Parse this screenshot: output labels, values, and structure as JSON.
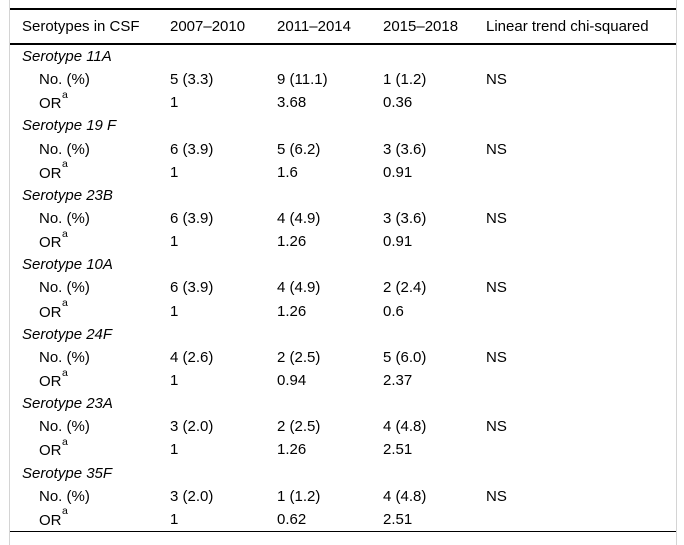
{
  "page": {
    "background": "#ffffff",
    "rule_color": "#000000",
    "frame_color": "#d4d4d4"
  },
  "table": {
    "columns": [
      {
        "label": "Serotypes in CSF"
      },
      {
        "label": "2007–2010"
      },
      {
        "label": "2011–2014"
      },
      {
        "label": "2015–2018"
      },
      {
        "label": "Linear trend chi-squared"
      }
    ],
    "row_labels": {
      "count": "No. (%)",
      "odds_ratio": "OR",
      "odds_ratio_sup": "a"
    },
    "groups": [
      {
        "serotype": "Serotype 11A",
        "counts": [
          "5 (3.3)",
          "9 (11.1)",
          "1 (1.2)"
        ],
        "trend": "NS",
        "odds_ratios": [
          "1",
          "3.68",
          "0.36"
        ]
      },
      {
        "serotype": "Serotype 19 F",
        "counts": [
          "6 (3.9)",
          "5 (6.2)",
          "3 (3.6)"
        ],
        "trend": "NS",
        "odds_ratios": [
          "1",
          "1.6",
          "0.91"
        ]
      },
      {
        "serotype": "Serotype 23B",
        "counts": [
          "6 (3.9)",
          "4 (4.9)",
          "3 (3.6)"
        ],
        "trend": "NS",
        "odds_ratios": [
          "1",
          "1.26",
          "0.91"
        ]
      },
      {
        "serotype": "Serotype 10A",
        "counts": [
          "6 (3.9)",
          "4 (4.9)",
          "2 (2.4)"
        ],
        "trend": "NS",
        "odds_ratios": [
          "1",
          "1.26",
          "0.6"
        ]
      },
      {
        "serotype": "Serotype 24F",
        "counts": [
          "4 (2.6)",
          "2 (2.5)",
          "5 (6.0)"
        ],
        "trend": "NS",
        "odds_ratios": [
          "1",
          "0.94",
          "2.37"
        ]
      },
      {
        "serotype": "Serotype 23A",
        "counts": [
          "3 (2.0)",
          "2 (2.5)",
          "4 (4.8)"
        ],
        "trend": "NS",
        "odds_ratios": [
          "1",
          "1.26",
          "2.51"
        ]
      },
      {
        "serotype": "Serotype 35F",
        "counts": [
          "3 (2.0)",
          "1 (1.2)",
          "4 (4.8)"
        ],
        "trend": "NS",
        "odds_ratios": [
          "1",
          "0.62",
          "2.51"
        ]
      }
    ]
  }
}
